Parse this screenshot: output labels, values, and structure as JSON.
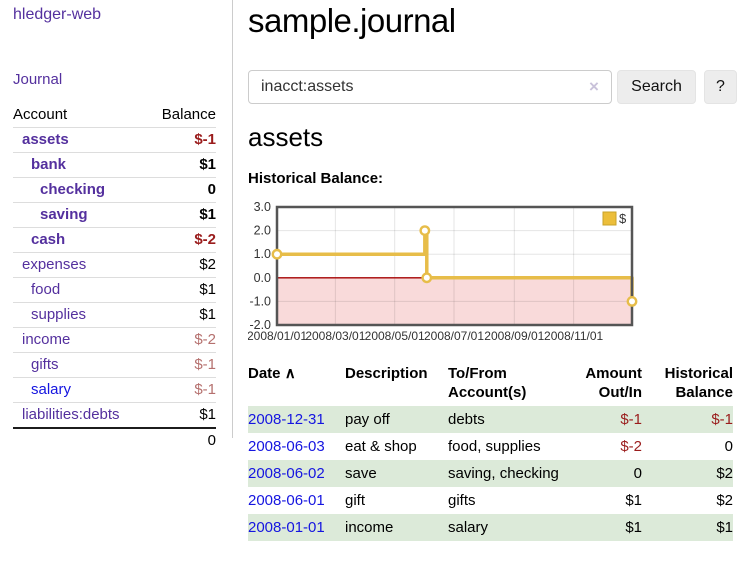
{
  "sidebar": {
    "brand": "hledger-web",
    "journal_link": "Journal",
    "accounts_table": {
      "headers": {
        "account": "Account",
        "balance": "Balance"
      },
      "rows": [
        {
          "name": "assets",
          "indent": 0,
          "bold": true,
          "name_color": "purple",
          "balance": "$-1",
          "balance_style": "neg"
        },
        {
          "name": "bank",
          "indent": 1,
          "bold": true,
          "name_color": "purple",
          "balance": "$1",
          "balance_style": ""
        },
        {
          "name": "checking",
          "indent": 2,
          "bold": true,
          "name_color": "purple",
          "balance": "0",
          "balance_style": ""
        },
        {
          "name": "saving",
          "indent": 2,
          "bold": true,
          "name_color": "purple",
          "balance": "$1",
          "balance_style": ""
        },
        {
          "name": "cash",
          "indent": 1,
          "bold": true,
          "name_color": "purple",
          "balance": "$-2",
          "balance_style": "neg"
        },
        {
          "name": "expenses",
          "indent": 0,
          "bold": false,
          "name_color": "purple",
          "balance": "$2",
          "balance_style": ""
        },
        {
          "name": "food",
          "indent": 1,
          "bold": false,
          "name_color": "purple",
          "balance": "$1",
          "balance_style": ""
        },
        {
          "name": "supplies",
          "indent": 1,
          "bold": false,
          "name_color": "purple",
          "balance": "$1",
          "balance_style": ""
        },
        {
          "name": "income",
          "indent": 0,
          "bold": false,
          "name_color": "purple",
          "balance": "$-2",
          "balance_style": "soft"
        },
        {
          "name": "gifts",
          "indent": 1,
          "bold": false,
          "name_color": "purple",
          "balance": "$-1",
          "balance_style": "soft"
        },
        {
          "name": "salary",
          "indent": 1,
          "bold": false,
          "name_color": "blue",
          "balance": "$-1",
          "balance_style": "soft"
        },
        {
          "name": "liabilities:debts",
          "indent": 0,
          "bold": false,
          "name_color": "purple",
          "balance": "$1",
          "balance_style": ""
        }
      ],
      "total": "0"
    }
  },
  "main": {
    "title": "sample.journal",
    "search": {
      "query": "inacct:assets",
      "clear_icon": "×",
      "search_label": "Search",
      "help_label": "?"
    },
    "account_heading": "assets",
    "chart_label": "Historical Balance:",
    "register_table": {
      "headers": {
        "date": "Date",
        "sort_asc_icon": "∧",
        "description": "Description",
        "account": "To/From Account(s)",
        "amount": "Amount Out/In",
        "balance": "Historical Balance"
      },
      "rows": [
        {
          "date": "2008-12-31",
          "description": "pay off",
          "account": "debts",
          "amount": "$-1",
          "amount_neg": true,
          "balance": "$-1",
          "balance_neg": true,
          "shade": true
        },
        {
          "date": "2008-06-03",
          "description": "eat & shop",
          "account": "food, supplies",
          "amount": "$-2",
          "amount_neg": true,
          "balance": "0",
          "balance_neg": false,
          "shade": false
        },
        {
          "date": "2008-06-02",
          "description": "save",
          "account": "saving, checking",
          "amount": "0",
          "amount_neg": false,
          "balance": "$2",
          "balance_neg": false,
          "shade": true
        },
        {
          "date": "2008-06-01",
          "description": "gift",
          "account": "gifts",
          "amount": "$1",
          "amount_neg": false,
          "balance": "$2",
          "balance_neg": false,
          "shade": false
        },
        {
          "date": "2008-01-01",
          "description": "income",
          "account": "salary",
          "amount": "$1",
          "amount_neg": false,
          "balance": "$1",
          "balance_neg": false,
          "shade": true
        }
      ]
    }
  },
  "chart_data": {
    "type": "line",
    "title": "Historical Balance",
    "step": true,
    "x_range": [
      "2008-01-01",
      "2008-12-31"
    ],
    "ylim": [
      -2,
      3
    ],
    "series": [
      {
        "name": "$",
        "color": "#e7bd49",
        "points": [
          {
            "date": "2008-01-01",
            "value": 1
          },
          {
            "date": "2008-06-01",
            "value": 2
          },
          {
            "date": "2008-06-03",
            "value": 0
          },
          {
            "date": "2008-12-31",
            "value": -1
          }
        ]
      }
    ],
    "x_ticks": [
      {
        "label": "2008/01/01",
        "date": "2008-01-01"
      },
      {
        "label": "2008/03/01",
        "date": "2008-03-01"
      },
      {
        "label": "2008/05/01",
        "date": "2008-05-01"
      },
      {
        "label": "2008/07/01",
        "date": "2008-07-01"
      },
      {
        "label": "2008/09/01",
        "date": "2008-09-01"
      },
      {
        "label": "2008/11/01",
        "date": "2008-11-01"
      }
    ],
    "y_ticks": [
      {
        "label": "3.0",
        "value": 3
      },
      {
        "label": "2.0",
        "value": 2
      },
      {
        "label": "1.0",
        "value": 1
      },
      {
        "label": "0.0",
        "value": 0
      },
      {
        "label": "-1.0",
        "value": -1
      },
      {
        "label": "-2.0",
        "value": -2
      }
    ],
    "legend": {
      "label": "$",
      "position": "top-right",
      "swatch_color": "#ecbe3a",
      "swatch_border": "#c9a32a"
    },
    "colors": {
      "negative_region": "#f9dada",
      "zero_line": "#a40000",
      "grid": "rgba(0,0,0,0.10)",
      "plot_border": "#555555",
      "tick_text": "#333333"
    }
  }
}
